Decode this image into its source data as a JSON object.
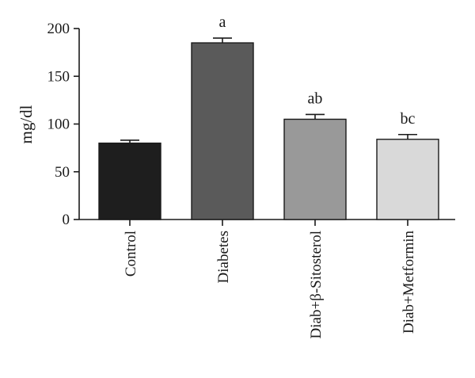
{
  "chart_data": {
    "type": "bar",
    "title": "",
    "xlabel": "",
    "ylabel": "mg/dl",
    "ylim": [
      0,
      200
    ],
    "yticks": [
      0,
      50,
      100,
      150,
      200
    ],
    "grid": false,
    "categories": [
      "Control",
      "Diabetes",
      "Diab+β-Sitosterol",
      "Diab+Metformin"
    ],
    "values": [
      80,
      185,
      105,
      84
    ],
    "errors": [
      3,
      5,
      5,
      5
    ],
    "significance_labels": [
      "",
      "a",
      "ab",
      "bc"
    ],
    "bar_colors": [
      "#1e1e1e",
      "#5a5a5a",
      "#999999",
      "#d9d9d9"
    ],
    "axis_color": "#1a1a1a"
  }
}
